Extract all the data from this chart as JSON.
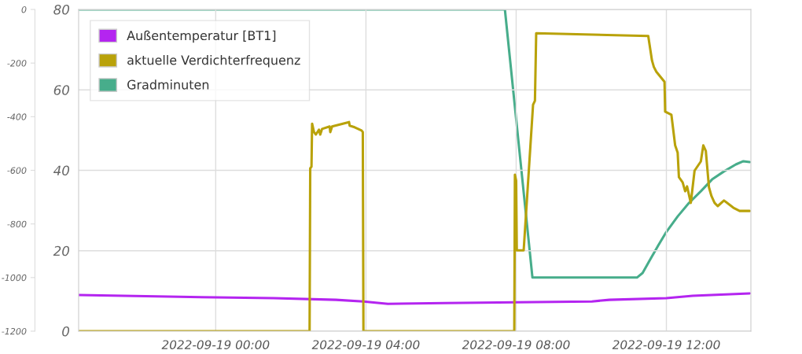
{
  "chart_data": {
    "type": "line",
    "legend": "top left",
    "grid": true,
    "xlim": [
      "2022-09-18T20:21",
      "2022-09-19T14:15"
    ],
    "xticks": [
      {
        "value": "2022-09-19T00:00",
        "label": "2022-09-19 00:00"
      },
      {
        "value": "2022-09-19T04:00",
        "label": "2022-09-19 04:00"
      },
      {
        "value": "2022-09-19T08:00",
        "label": "2022-09-19 08:00"
      },
      {
        "value": "2022-09-19T12:00",
        "label": "2022-09-19 12:00"
      }
    ],
    "ylim": [
      0,
      80
    ],
    "yticks": [
      0,
      20,
      40,
      60,
      80
    ],
    "y2lim": [
      -1200,
      0
    ],
    "y2ticks": [
      -1200,
      -1000,
      -800,
      -600,
      -400,
      -200,
      0
    ],
    "series": [
      {
        "name": "Außentemperatur [BT1]",
        "color": "#b425f0",
        "x": [
          "2022-09-18T20:21",
          "2022-09-19T00:00",
          "2022-09-19T01:33",
          "2022-09-19T03:12",
          "2022-09-19T03:56",
          "2022-09-19T04:35",
          "2022-09-19T06:06",
          "2022-09-19T08:00",
          "2022-09-19T10:01",
          "2022-09-19T10:29",
          "2022-09-19T12:00",
          "2022-09-19T12:42",
          "2022-09-19T14:13"
        ],
        "values": [
          9.0,
          8.4,
          8.2,
          7.8,
          7.4,
          6.8,
          7.0,
          7.2,
          7.4,
          7.8,
          8.2,
          8.8,
          9.4
        ]
      },
      {
        "name": "aktuelle Verdichterfrequenz",
        "color": "#b9a20a",
        "x": [
          "2022-09-18T20:21",
          "2022-09-19T02:30",
          "2022-09-19T02:31",
          "2022-09-19T02:33",
          "2022-09-19T02:34",
          "2022-09-19T02:37",
          "2022-09-19T02:40",
          "2022-09-19T02:45",
          "2022-09-19T02:47",
          "2022-09-19T02:50",
          "2022-09-19T03:02",
          "2022-09-19T03:03",
          "2022-09-19T03:06",
          "2022-09-19T03:33",
          "2022-09-19T03:34",
          "2022-09-19T03:42",
          "2022-09-19T03:53",
          "2022-09-19T03:55",
          "2022-09-19T03:56",
          "2022-09-19T07:57",
          "2022-09-19T07:58",
          "2022-09-19T08:00",
          "2022-09-19T08:01",
          "2022-09-19T08:12",
          "2022-09-19T08:27",
          "2022-09-19T08:30",
          "2022-09-19T08:32",
          "2022-09-19T11:31",
          "2022-09-19T11:37",
          "2022-09-19T11:40",
          "2022-09-19T11:44",
          "2022-09-19T11:57",
          "2022-09-19T11:58",
          "2022-09-19T12:08",
          "2022-09-19T12:14",
          "2022-09-19T12:18",
          "2022-09-19T12:20",
          "2022-09-19T12:26",
          "2022-09-19T12:30",
          "2022-09-19T12:33",
          "2022-09-19T12:39",
          "2022-09-19T12:45",
          "2022-09-19T12:55",
          "2022-09-19T12:59",
          "2022-09-19T13:03",
          "2022-09-19T13:08",
          "2022-09-19T13:12",
          "2022-09-19T13:17",
          "2022-09-19T13:22",
          "2022-09-19T13:32",
          "2022-09-19T13:47",
          "2022-09-19T13:57",
          "2022-09-19T14:13"
        ],
        "values": [
          0,
          0,
          40.5,
          40.9,
          51.6,
          49.5,
          48.9,
          50.1,
          48.9,
          50.3,
          50.9,
          49.5,
          50.9,
          52.0,
          51.1,
          50.7,
          49.9,
          49.5,
          0,
          0,
          38.9,
          37.4,
          20.1,
          20.1,
          56.3,
          57.3,
          74.1,
          73.4,
          67.3,
          65.7,
          64.5,
          62.0,
          54.6,
          53.8,
          46.2,
          44.4,
          38.3,
          37.0,
          34.8,
          36.0,
          31.9,
          39.9,
          42.2,
          46.2,
          44.8,
          35.8,
          33.6,
          31.9,
          31.1,
          32.5,
          30.7,
          29.9,
          29.9
        ]
      },
      {
        "name": "Gradminuten",
        "color": "#47ad8b",
        "axis": "y2",
        "x": [
          "2022-09-18T20:21",
          "2022-09-19T07:42",
          "2022-09-19T08:26",
          "2022-09-19T11:13",
          "2022-09-19T11:22",
          "2022-09-19T11:34",
          "2022-09-19T11:47",
          "2022-09-19T11:59",
          "2022-09-19T12:18",
          "2022-09-19T12:36",
          "2022-09-19T12:55",
          "2022-09-19T13:13",
          "2022-09-19T13:32",
          "2022-09-19T13:51",
          "2022-09-19T14:03",
          "2022-09-19T14:13"
        ],
        "values": [
          0,
          0,
          -1000,
          -1000,
          -983,
          -933,
          -880,
          -833,
          -772,
          -722,
          -678,
          -634,
          -604,
          -578,
          -566,
          -569
        ]
      }
    ]
  }
}
